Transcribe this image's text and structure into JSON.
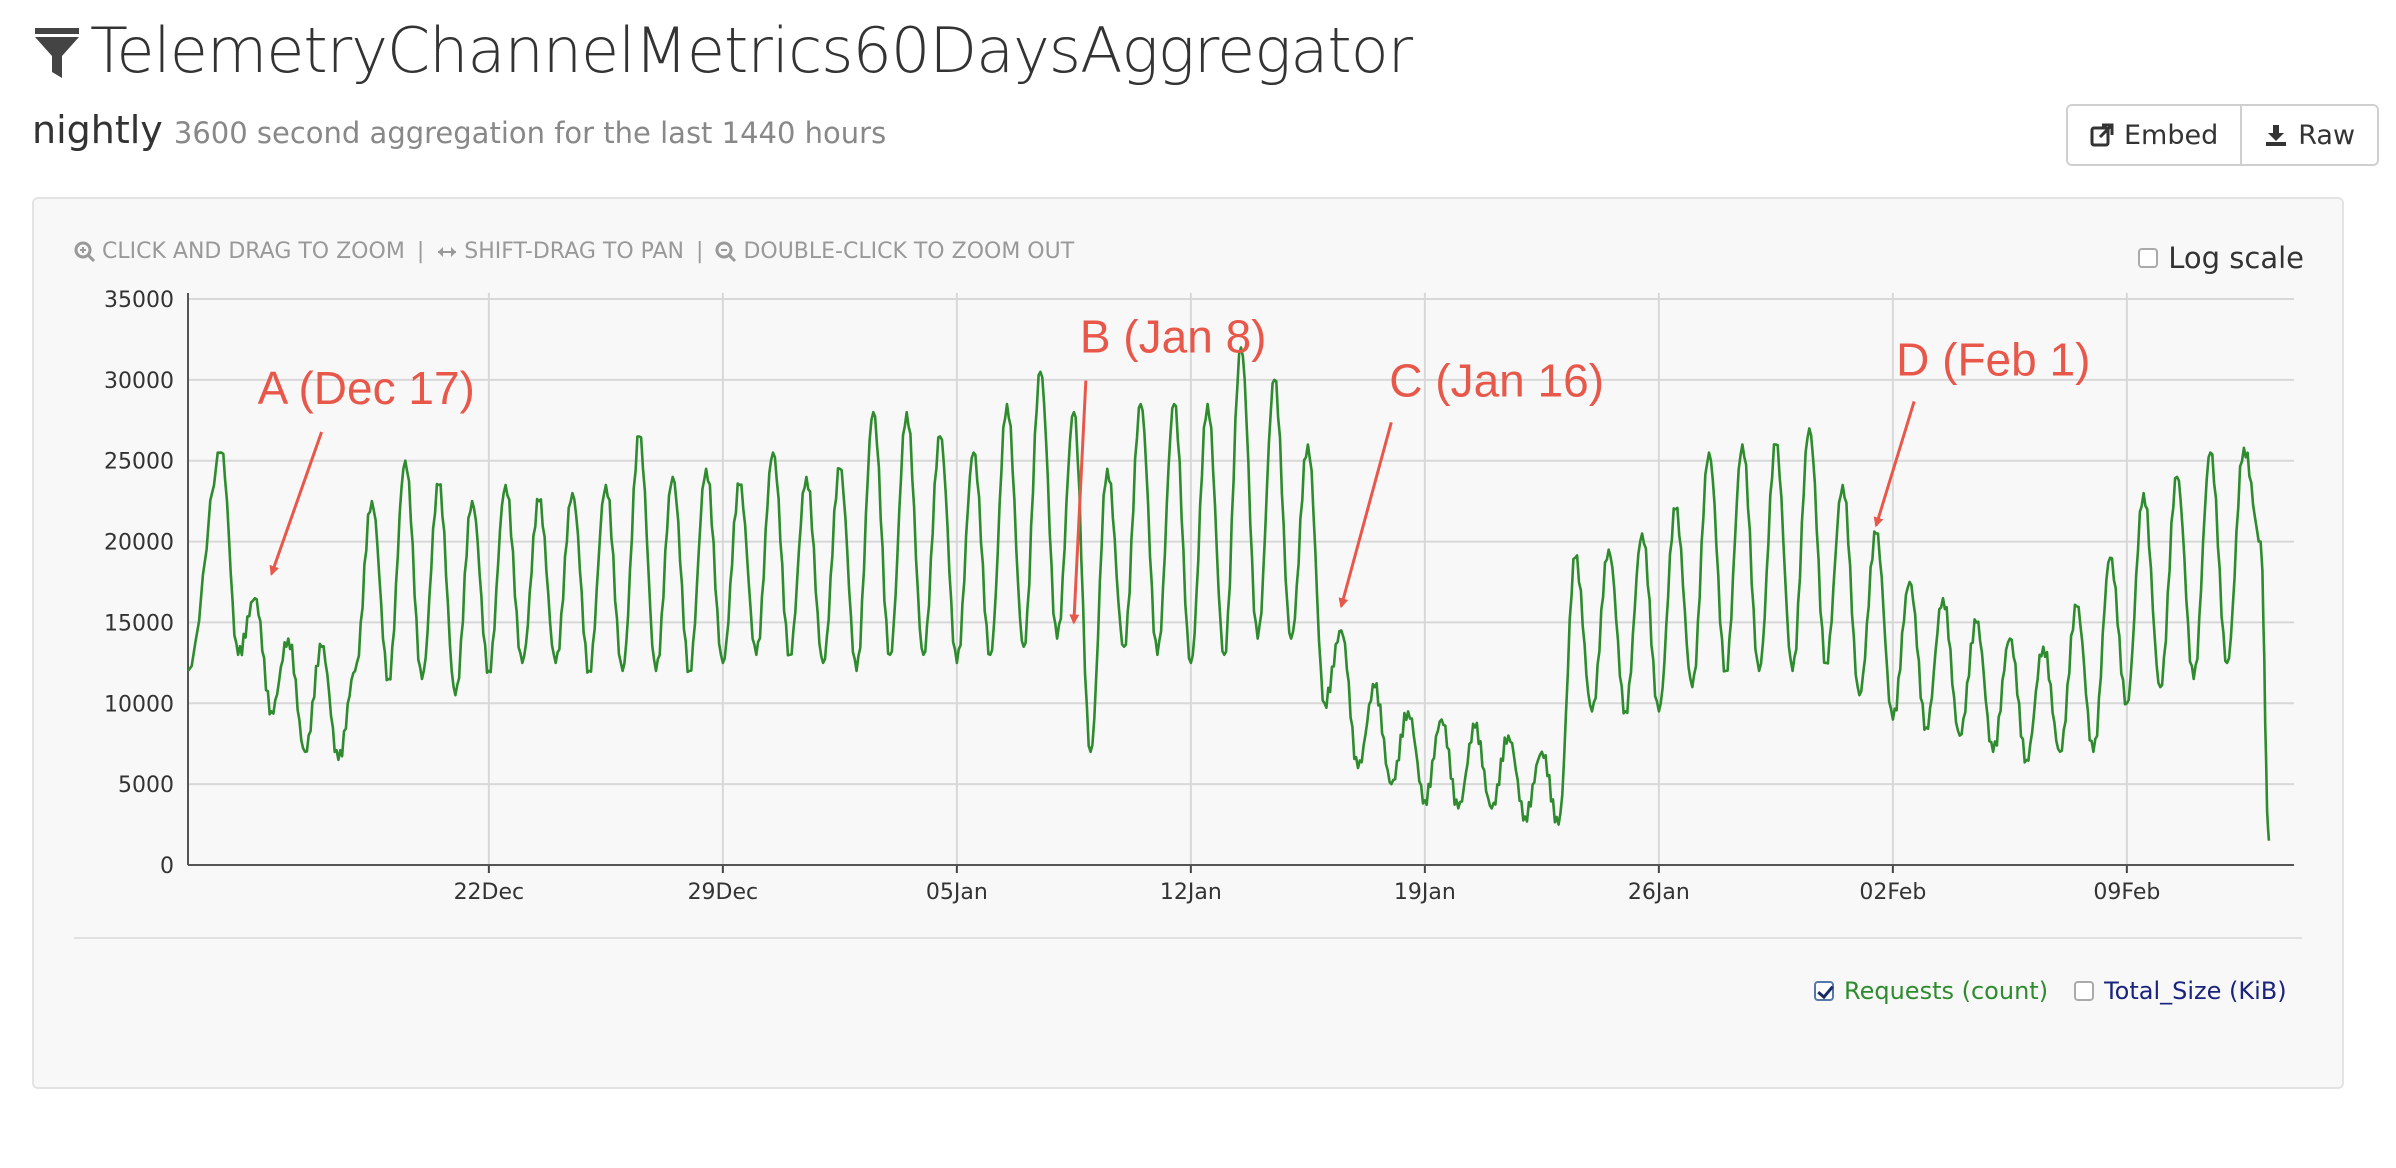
{
  "header": {
    "title": "TelemetryChannelMetrics60DaysAggregator",
    "subtitle_name": "nightly",
    "subtitle_desc": "3600 second aggregation for the last 1440 hours",
    "embed_label": "Embed",
    "raw_label": "Raw"
  },
  "toolbar": {
    "zoom_help": "CLICK AND DRAG TO ZOOM",
    "pan_help": "SHIFT-DRAG TO PAN",
    "zoomout_help": "DOUBLE-CLICK TO ZOOM OUT",
    "separator": "|",
    "log_scale_label": "Log scale",
    "log_scale_checked": false
  },
  "legend": [
    {
      "label": "Requests (count)",
      "checked": true,
      "color": "#2e8b2e"
    },
    {
      "label": "Total_Size (KiB)",
      "checked": false,
      "color": "#1a237e"
    }
  ],
  "icons": {
    "title": "filter-icon",
    "embed": "external-link-icon",
    "raw": "download-icon",
    "zoom_in": "zoom-in-icon",
    "pan": "arrows-horizontal-icon",
    "zoom_out": "zoom-out-icon"
  },
  "chart_data": {
    "type": "line",
    "x_unit": "date",
    "x_start": "2017-12-13",
    "x_end": "2018-02-14",
    "ylim": [
      0,
      35000
    ],
    "y_ticks": [
      0,
      5000,
      10000,
      15000,
      20000,
      25000,
      30000,
      35000
    ],
    "x_ticks": [
      "22Dec",
      "29Dec",
      "05Jan",
      "12Jan",
      "19Jan",
      "26Jan",
      "02Feb",
      "09Feb"
    ],
    "grid": true,
    "line_color": "#2e8b2e",
    "series": [
      {
        "name": "Requests (count)",
        "points": [
          [
            "2017-12-13",
            12000
          ],
          [
            "2017-12-14",
            25500
          ],
          [
            "2017-12-14T12",
            13000
          ],
          [
            "2017-12-15",
            16500
          ],
          [
            "2017-12-15T12",
            9500
          ],
          [
            "2017-12-16",
            14000
          ],
          [
            "2017-12-16T12",
            7000
          ],
          [
            "2017-12-17",
            13500
          ],
          [
            "2017-12-17T12",
            6500
          ],
          [
            "2017-12-18",
            12000
          ],
          [
            "2017-12-18T12",
            22500
          ],
          [
            "2017-12-19",
            11500
          ],
          [
            "2017-12-19T12",
            25000
          ],
          [
            "2017-12-20",
            11500
          ],
          [
            "2017-12-20T12",
            23500
          ],
          [
            "2017-12-21",
            10500
          ],
          [
            "2017-12-21T12",
            22500
          ],
          [
            "2017-12-22",
            12000
          ],
          [
            "2017-12-22T12",
            23500
          ],
          [
            "2017-12-23",
            12500
          ],
          [
            "2017-12-23T12",
            22500
          ],
          [
            "2017-12-24",
            12500
          ],
          [
            "2017-12-24T12",
            23000
          ],
          [
            "2017-12-25",
            12000
          ],
          [
            "2017-12-25T12",
            23500
          ],
          [
            "2017-12-26",
            12000
          ],
          [
            "2017-12-26T12",
            26500
          ],
          [
            "2017-12-27",
            12000
          ],
          [
            "2017-12-27T12",
            24000
          ],
          [
            "2017-12-28",
            12000
          ],
          [
            "2017-12-28T12",
            24500
          ],
          [
            "2017-12-29",
            12500
          ],
          [
            "2017-12-29T12",
            23500
          ],
          [
            "2017-12-30",
            13000
          ],
          [
            "2017-12-30T12",
            25500
          ],
          [
            "2017-12-31",
            13000
          ],
          [
            "2017-12-31T12",
            24000
          ],
          [
            "2018-01-01",
            12500
          ],
          [
            "2018-01-01T12",
            24500
          ],
          [
            "2018-01-02",
            12000
          ],
          [
            "2018-01-02T12",
            28000
          ],
          [
            "2018-01-03",
            13000
          ],
          [
            "2018-01-03T12",
            28000
          ],
          [
            "2018-01-04",
            13000
          ],
          [
            "2018-01-04T12",
            26500
          ],
          [
            "2018-01-05",
            12500
          ],
          [
            "2018-01-05T12",
            25500
          ],
          [
            "2018-01-06",
            13000
          ],
          [
            "2018-01-06T12",
            28500
          ],
          [
            "2018-01-07",
            13500
          ],
          [
            "2018-01-07T12",
            30500
          ],
          [
            "2018-01-08",
            14000
          ],
          [
            "2018-01-08T12",
            28000
          ],
          [
            "2018-01-09",
            7000
          ],
          [
            "2018-01-09T12",
            24500
          ],
          [
            "2018-01-10",
            13500
          ],
          [
            "2018-01-10T12",
            28500
          ],
          [
            "2018-01-11",
            13000
          ],
          [
            "2018-01-11T12",
            28500
          ],
          [
            "2018-01-12",
            12500
          ],
          [
            "2018-01-12T12",
            28500
          ],
          [
            "2018-01-13",
            13000
          ],
          [
            "2018-01-13T12",
            32000
          ],
          [
            "2018-01-14",
            14000
          ],
          [
            "2018-01-14T12",
            30000
          ],
          [
            "2018-01-15",
            14000
          ],
          [
            "2018-01-15T12",
            26000
          ],
          [
            "2018-01-16",
            10000
          ],
          [
            "2018-01-16T12",
            14500
          ],
          [
            "2018-01-17",
            6000
          ],
          [
            "2018-01-17T12",
            11000
          ],
          [
            "2018-01-18",
            5000
          ],
          [
            "2018-01-18T12",
            9500
          ],
          [
            "2018-01-19",
            4000
          ],
          [
            "2018-01-19T12",
            9000
          ],
          [
            "2018-01-20",
            3500
          ],
          [
            "2018-01-20T12",
            8500
          ],
          [
            "2018-01-21",
            3500
          ],
          [
            "2018-01-21T12",
            8000
          ],
          [
            "2018-01-22",
            3000
          ],
          [
            "2018-01-22T12",
            7000
          ],
          [
            "2018-01-23",
            2500
          ],
          [
            "2018-01-23T12",
            19000
          ],
          [
            "2018-01-24",
            9500
          ],
          [
            "2018-01-24T12",
            19500
          ],
          [
            "2018-01-25",
            9500
          ],
          [
            "2018-01-25T12",
            20500
          ],
          [
            "2018-01-26",
            9500
          ],
          [
            "2018-01-26T12",
            22000
          ],
          [
            "2018-01-27",
            11000
          ],
          [
            "2018-01-27T12",
            25500
          ],
          [
            "2018-01-28",
            12000
          ],
          [
            "2018-01-28T12",
            26000
          ],
          [
            "2018-01-29",
            12000
          ],
          [
            "2018-01-29T12",
            26000
          ],
          [
            "2018-01-30",
            12000
          ],
          [
            "2018-01-30T12",
            27000
          ],
          [
            "2018-01-31",
            12500
          ],
          [
            "2018-01-31T12",
            23500
          ],
          [
            "2018-02-01",
            10500
          ],
          [
            "2018-02-01T12",
            20500
          ],
          [
            "2018-02-02",
            9000
          ],
          [
            "2018-02-02T12",
            17500
          ],
          [
            "2018-02-03",
            8500
          ],
          [
            "2018-02-03T12",
            16500
          ],
          [
            "2018-02-04",
            8000
          ],
          [
            "2018-02-04T12",
            15000
          ],
          [
            "2018-02-05",
            7000
          ],
          [
            "2018-02-05T12",
            14000
          ],
          [
            "2018-02-06",
            6500
          ],
          [
            "2018-02-06T12",
            13500
          ],
          [
            "2018-02-07",
            7000
          ],
          [
            "2018-02-07T12",
            16000
          ],
          [
            "2018-02-08",
            7000
          ],
          [
            "2018-02-08T12",
            19000
          ],
          [
            "2018-02-09",
            10000
          ],
          [
            "2018-02-09T12",
            23000
          ],
          [
            "2018-02-10",
            11000
          ],
          [
            "2018-02-10T12",
            24000
          ],
          [
            "2018-02-11",
            11500
          ],
          [
            "2018-02-11T12",
            25500
          ],
          [
            "2018-02-12",
            12500
          ],
          [
            "2018-02-12T12",
            25800
          ],
          [
            "2018-02-13",
            20000
          ],
          [
            "2018-02-13T06",
            1500
          ]
        ]
      }
    ],
    "annotations": [
      {
        "label": "A (Dec 17)",
        "x": "2017-12-15T12",
        "y": 17500,
        "color": "#e8584a"
      },
      {
        "label": "B (Jan 8)",
        "x": "2018-01-08T12",
        "y": 14500,
        "color": "#e8584a"
      },
      {
        "label": "C (Jan 16)",
        "x": "2018-01-16T12",
        "y": 15500,
        "color": "#e8584a"
      },
      {
        "label": "D (Feb 1)",
        "x": "2018-02-01T12",
        "y": 20500,
        "color": "#e8584a"
      }
    ]
  }
}
